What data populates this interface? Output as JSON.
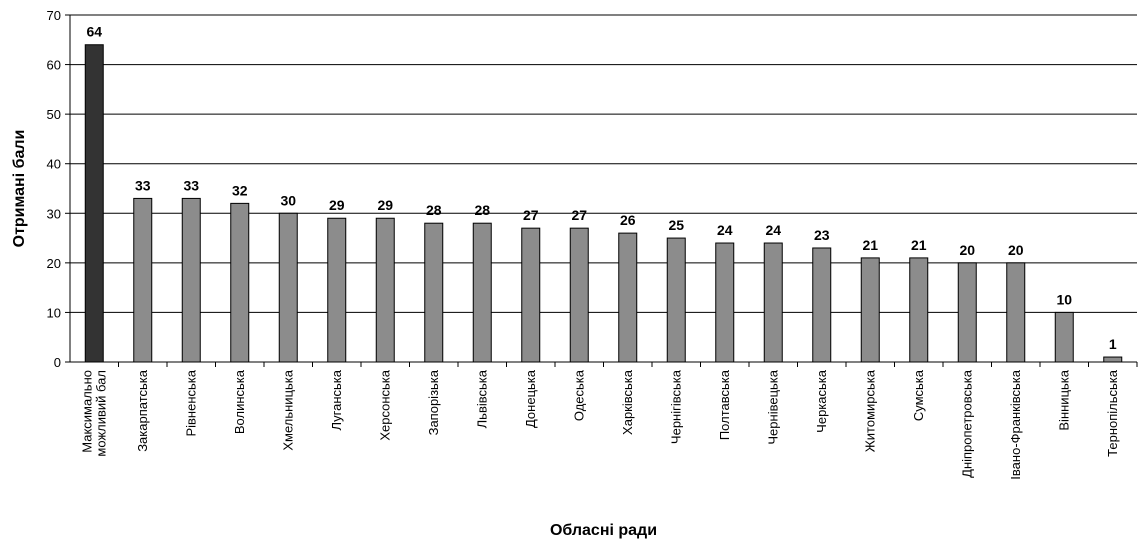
{
  "chart_data": {
    "type": "bar",
    "xlabel": "Обласні ради",
    "ylabel": "Отримані бали",
    "ylim": [
      0,
      70
    ],
    "yticks": [
      0,
      10,
      20,
      30,
      40,
      50,
      60,
      70
    ],
    "grid": true,
    "categories": [
      [
        "Максимально",
        "можливий бал"
      ],
      [
        "Закарпатська"
      ],
      [
        "Рівненська"
      ],
      [
        "Волинська"
      ],
      [
        "Хмельницька"
      ],
      [
        "Луганська"
      ],
      [
        "Херсонська"
      ],
      [
        "Запорізька"
      ],
      [
        "Львівська"
      ],
      [
        "Донецька"
      ],
      [
        "Одеська"
      ],
      [
        "Харківська"
      ],
      [
        "Чернігівська"
      ],
      [
        "Полтавська"
      ],
      [
        "Чернівецька"
      ],
      [
        "Черкаська"
      ],
      [
        "Житомирська"
      ],
      [
        "Сумська"
      ],
      [
        "Дніпропетровська"
      ],
      [
        "Івано-Франківська"
      ],
      [
        "Вінницька"
      ],
      [
        "Тернопільська"
      ]
    ],
    "values": [
      64,
      33,
      33,
      32,
      30,
      29,
      29,
      28,
      28,
      27,
      27,
      26,
      25,
      24,
      24,
      23,
      21,
      21,
      20,
      20,
      10,
      1
    ],
    "colors": {
      "highlight": "#333333",
      "bar": "#8c8c8c",
      "edge": "#000000",
      "grid": "#000000"
    }
  }
}
